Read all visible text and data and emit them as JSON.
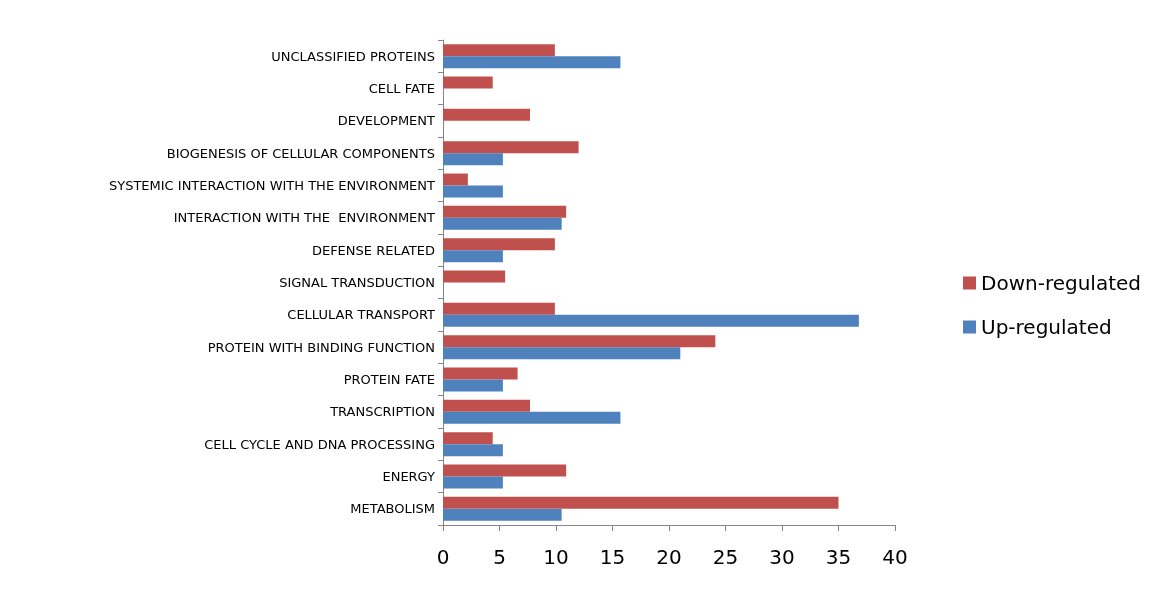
{
  "chart_data": {
    "type": "bar",
    "orientation": "horizontal",
    "categories": [
      "UNCLASSIFIED PROTEINS",
      "CELL FATE",
      "DEVELOPMENT",
      "BIOGENESIS OF CELLULAR COMPONENTS",
      "SYSTEMIC INTERACTION WITH THE ENVIRONMENT",
      "INTERACTION WITH THE  ENVIRONMENT",
      "DEFENSE RELATED",
      "SIGNAL TRANSDUCTION",
      "CELLULAR TRANSPORT",
      "PROTEIN WITH BINDING FUNCTION",
      "PROTEIN FATE",
      "TRANSCRIPTION",
      "CELL CYCLE AND DNA PROCESSING",
      "ENERGY",
      "METABOLISM"
    ],
    "series": [
      {
        "name": "Down-regulated",
        "color": "#c0504d",
        "values": [
          9.9,
          4.4,
          7.7,
          12.0,
          2.2,
          10.9,
          9.9,
          5.5,
          9.9,
          24.1,
          6.6,
          7.7,
          4.4,
          10.9,
          35.0
        ]
      },
      {
        "name": "Up-regulated",
        "color": "#4f81bd",
        "values": [
          15.7,
          null,
          null,
          5.3,
          5.3,
          10.5,
          5.3,
          null,
          36.8,
          21.0,
          5.3,
          15.7,
          5.3,
          5.3,
          10.5
        ]
      }
    ],
    "xlim": [
      0,
      40
    ],
    "xticks": [
      0,
      5,
      10,
      15,
      20,
      25,
      30,
      35,
      40
    ],
    "grid": false,
    "legend": "right"
  }
}
